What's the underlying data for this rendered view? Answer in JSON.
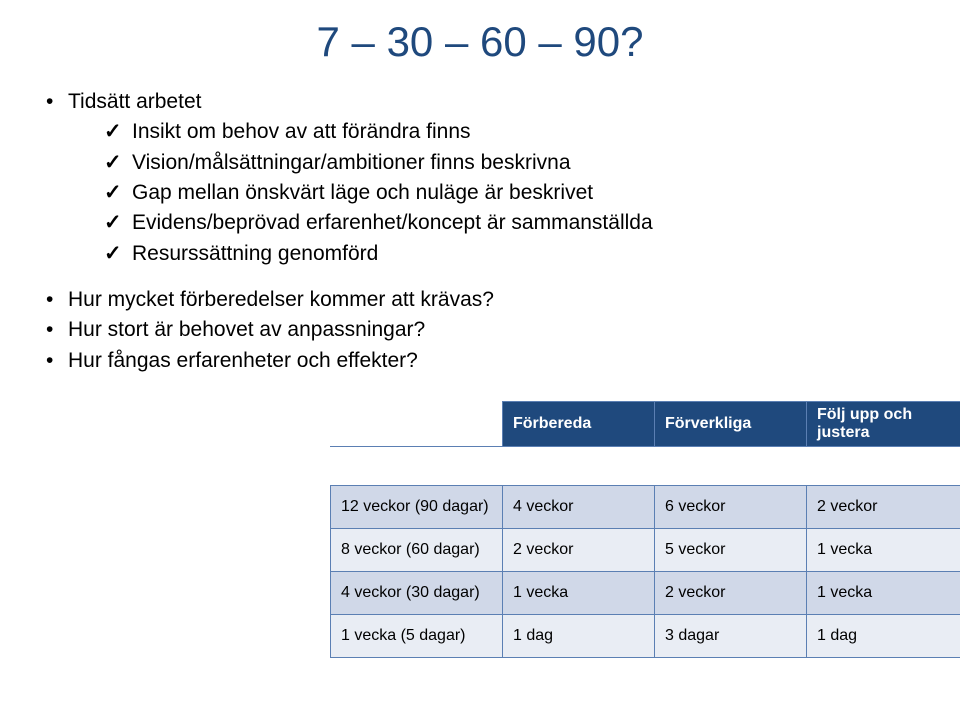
{
  "title": "7 – 30 – 60 – 90?",
  "main_bullet": "Tidsätt arbetet",
  "checks": [
    "Insikt om behov av att förändra finns",
    "Vision/målsättningar/ambitioner finns beskrivna",
    "Gap mellan önskvärt läge och nuläge är beskrivet",
    "Evidens/beprövad erfarenhet/koncept är sammanställda",
    "Resurssättning genomförd"
  ],
  "questions": [
    "Hur mycket förberedelser kommer att krävas?",
    "Hur stort är behovet av anpassningar?",
    "Hur fångas erfarenheter och effekter?"
  ],
  "table": {
    "columns": [
      "",
      "Förbereda",
      "Förverkliga",
      "Följ upp och justera"
    ],
    "rows": [
      [
        "12 veckor (90 dagar)",
        "4 veckor",
        "6 veckor",
        "2 veckor"
      ],
      [
        "8 veckor (60 dagar)",
        "2 veckor",
        "5 veckor",
        "1 vecka"
      ],
      [
        "4 veckor (30 dagar)",
        "1 vecka",
        "2 veckor",
        "1 vecka"
      ],
      [
        "1 vecka (5 dagar)",
        "1 dag",
        "3 dagar",
        "1 dag"
      ]
    ],
    "header_bg": "#1f497d",
    "header_fg": "#ffffff",
    "row_alt_a": "#d0d8e8",
    "row_alt_b": "#e9edf4",
    "border_color": "#5b7fb3"
  }
}
